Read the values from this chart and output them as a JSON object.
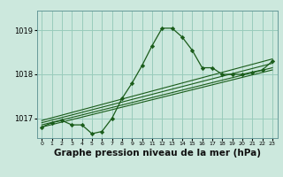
{
  "bg_color": "#cce8dd",
  "grid_color": "#99ccbb",
  "line_color": "#1a5c1a",
  "marker_color": "#1a5c1a",
  "xlabel": "Graphe pression niveau de la mer (hPa)",
  "xlabel_fontsize": 7.5,
  "ylim": [
    1016.55,
    1019.45
  ],
  "xlim": [
    -0.5,
    23.5
  ],
  "yticks": [
    1017,
    1018,
    1019
  ],
  "xticks": [
    0,
    1,
    2,
    3,
    4,
    5,
    6,
    7,
    8,
    9,
    10,
    11,
    12,
    13,
    14,
    15,
    16,
    17,
    18,
    19,
    20,
    21,
    22,
    23
  ],
  "series1_x": [
    0,
    1,
    2,
    3,
    4,
    5,
    6,
    7,
    8,
    9,
    10,
    11,
    12,
    13,
    14,
    15,
    16,
    17,
    18,
    19,
    20,
    21,
    22,
    23
  ],
  "series1_y": [
    1016.8,
    1016.9,
    1016.95,
    1016.85,
    1016.85,
    1016.65,
    1016.7,
    1017.0,
    1017.45,
    1017.8,
    1018.2,
    1018.65,
    1019.05,
    1019.05,
    1018.85,
    1018.55,
    1018.15,
    1018.15,
    1018.0,
    1018.0,
    1018.0,
    1018.05,
    1018.1,
    1018.3
  ],
  "series2_x": [
    0,
    23
  ],
  "series2_y": [
    1016.8,
    1018.1
  ],
  "series3_x": [
    0,
    23
  ],
  "series3_y": [
    1016.85,
    1018.15
  ],
  "series4_x": [
    0,
    23
  ],
  "series4_y": [
    1016.9,
    1018.25
  ],
  "series5_x": [
    0,
    23
  ],
  "series5_y": [
    1016.95,
    1018.35
  ]
}
